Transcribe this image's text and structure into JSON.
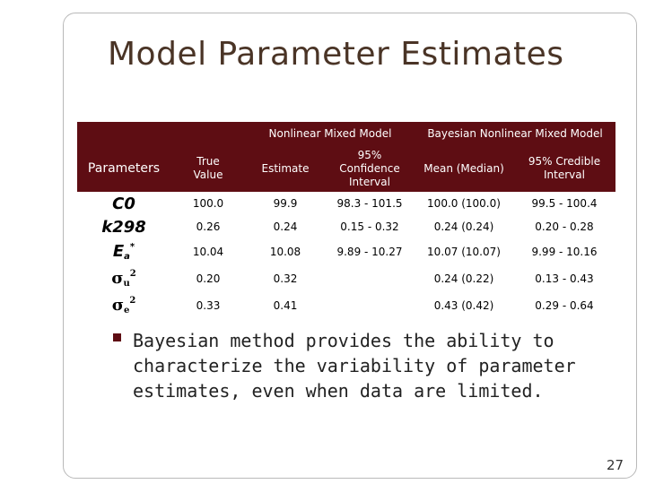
{
  "slide": {
    "title": "Model Parameter Estimates",
    "page_number": "27"
  },
  "table": {
    "group_headers": [
      "Nonlinear Mixed Model",
      "Bayesian Nonlinear Mixed Model"
    ],
    "col_headers": {
      "parameters": "Parameters",
      "true_value": "True Value",
      "estimate": "Estimate",
      "ci_95": "95% Confidence Interval",
      "mean_median": "Mean (Median)",
      "credible_95": "95% Credible Interval"
    },
    "rows": [
      {
        "param": "C0",
        "true": "100.0",
        "est": "99.9",
        "ci": "98.3 - 101.5",
        "mean": "100.0 (100.0)",
        "cred": "99.5 - 100.4"
      },
      {
        "param": "k298",
        "true": "0.26",
        "est": "0.24",
        "ci": "0.15 - 0.32",
        "mean": "0.24 (0.24)",
        "cred": "0.20 - 0.28"
      },
      {
        "param_base": "E",
        "param_sub": "a",
        "param_sup": "*",
        "true": "10.04",
        "est": "10.08",
        "ci": "9.89 - 10.27",
        "mean": "10.07 (10.07)",
        "cred": "9.99 - 10.16"
      },
      {
        "param_base": "σ",
        "param_sub": "u",
        "param_sup": "2",
        "true": "0.20",
        "est": "0.32",
        "ci": "",
        "mean": "0.24 (0.22)",
        "cred": "0.13 - 0.43"
      },
      {
        "param_base": "σ",
        "param_sub": "e",
        "param_sup": "2",
        "true": "0.33",
        "est": "0.41",
        "ci": "",
        "mean": "0.43 (0.42)",
        "cred": "0.29 - 0.64"
      }
    ]
  },
  "bullet": {
    "text": "Bayesian method provides the ability to characterize the variability of parameter estimates, even when data are limited."
  },
  "colors": {
    "header_bg": "#5e0d13",
    "title": "#4a3426",
    "bullet": "#5e0d13"
  }
}
